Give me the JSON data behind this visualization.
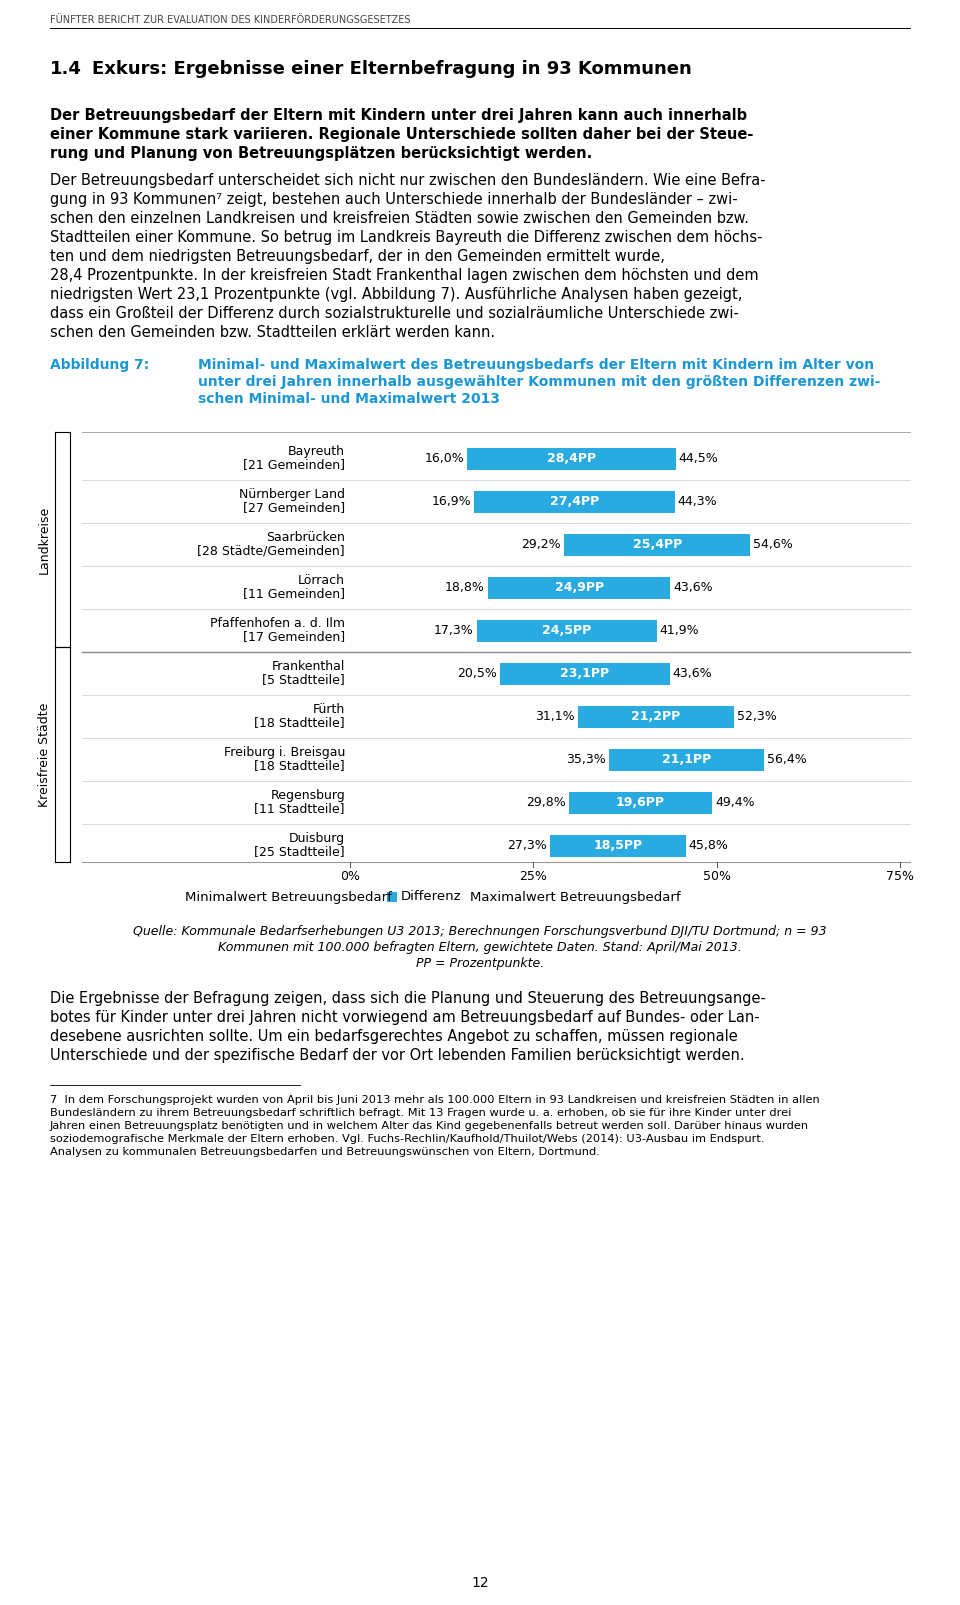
{
  "header": "FÜNFTER BERICHT ZUR EVALUATION DES KINDERFÖRDERUNGSGESETZES",
  "section_num": "1.4",
  "section_title": "Exkurs: Ergebnisse einer Elternbefragung in 93 Kommunen",
  "bold_lines": [
    "Der Betreuungsbedarf der Eltern mit Kindern unter drei Jahren kann auch innerhalb",
    "einer Kommune stark variieren. Regionale Unterschiede sollten daher bei der Steue-",
    "rung und Planung von Betreuungsplätzen berücksichtigt werden."
  ],
  "para1_lines": [
    "Der Betreuungsbedarf unterscheidet sich nicht nur zwischen den Bundesländern. Wie eine Befra-",
    "gung in 93 Kommunen⁷ zeigt, bestehen auch Unterschiede innerhalb der Bundesländer – zwi-",
    "schen den einzelnen Landkreisen und kreisfreien Städten sowie zwischen den Gemeinden bzw.",
    "Stadtteilen einer Kommune. So betrug im Landkreis Bayreuth die Differenz zwischen dem höchs-",
    "ten und dem niedrigsten Betreuungsbedarf, der in den Gemeinden ermittelt wurde,",
    "28,4 Prozentpunkte. In der kreisfreien Stadt Frankenthal lagen zwischen dem höchsten und dem",
    "niedrigsten Wert 23,1 Prozentpunkte (vgl. Abbildung 7). Ausführliche Analysen haben gezeigt,",
    "dass ein Großteil der Differenz durch sozialstrukturelle und sozialräumliche Unterschiede zwi-",
    "schen den Gemeinden bzw. Stadtteilen erklärt werden kann."
  ],
  "fig_label": "Abbildung 7:",
  "fig_title_lines": [
    "Minimal- und Maximalwert des Betreuungsbedarfs der Eltern mit Kindern im Alter von",
    "unter drei Jahren innerhalb ausgewählter Kommunen mit den größten Differenzen zwi-",
    "schen Minimal- und Maximalwert 2013"
  ],
  "categories": [
    "Bayreuth\n[21 Gemeinden]",
    "Nürnberger Land\n[27 Gemeinden]",
    "Saarbrücken\n[28 Städte/Gemeinden]",
    "Lörrach\n[11 Gemeinden]",
    "Pfaffenhofen a. d. Ilm\n[17 Gemeinden]",
    "Frankenthal\n[5 Stadtteile]",
    "Fürth\n[18 Stadtteile]",
    "Freiburg i. Breisgau\n[18 Stadtteile]",
    "Regensburg\n[11 Stadtteile]",
    "Duisburg\n[25 Stadtteile]"
  ],
  "group_labels": [
    "Landkreise",
    "Kreisfreie Städte"
  ],
  "min_vals": [
    16.0,
    16.9,
    29.2,
    18.8,
    17.3,
    20.5,
    31.1,
    35.3,
    29.8,
    27.3
  ],
  "diff_vals": [
    28.4,
    27.4,
    25.4,
    24.9,
    24.5,
    23.1,
    21.2,
    21.1,
    19.6,
    18.5
  ],
  "diff_labels": [
    "28,4PP",
    "27,4PP",
    "25,4PP",
    "24,9PP",
    "24,5PP",
    "23,1PP",
    "21,2PP",
    "21,1PP",
    "19,6PP",
    "18,5PP"
  ],
  "min_labels": [
    "16,0%",
    "16,9%",
    "29,2%",
    "18,8%",
    "17,3%",
    "20,5%",
    "31,1%",
    "35,3%",
    "29,8%",
    "27,3%"
  ],
  "max_labels": [
    "44,5%",
    "44,3%",
    "54,6%",
    "43,6%",
    "41,9%",
    "43,6%",
    "52,3%",
    "56,4%",
    "49,4%",
    "45,8%"
  ],
  "bar_color": "#29ABE2",
  "x_ticks": [
    0,
    25,
    50,
    75
  ],
  "x_tick_labels": [
    "0%",
    "25%",
    "50%",
    "75%"
  ],
  "legend_label_1": "Minimalwert Betreuungsbedarf",
  "legend_label_2": "Differenz",
  "legend_label_3": "Maximalwert Betreuungsbedarf",
  "source_lines": [
    "Quelle: Kommunale Bedarfserhebungen U3 2013; Berechnungen Forschungsverbund DJI/TU Dortmund; n = 93",
    "Kommunen mit 100.000 befragten Eltern, gewichtete Daten. Stand: April/Mai 2013.",
    "PP = Prozentpunkte."
  ],
  "para2_lines": [
    "Die Ergebnisse der Befragung zeigen, dass sich die Planung und Steuerung des Betreuungsange-",
    "botes für Kinder unter drei Jahren nicht vorwiegend am Betreuungsbedarf auf Bundes- oder Lan-",
    "desebene ausrichten sollte. Um ein bedarfsgerechtes Angebot zu schaffen, müssen regionale",
    "Unterschiede und der spezifische Bedarf der vor Ort lebenden Familien berücksichtigt werden."
  ],
  "footnote_lines": [
    "7  In dem Forschungsprojekt wurden von April bis Juni 2013 mehr als 100.000 Eltern in 93 Landkreisen und kreisfreien Städten in allen",
    "Bundesländern zu ihrem Betreuungsbedarf schriftlich befragt. Mit 13 Fragen wurde u. a. erhoben, ob sie für ihre Kinder unter drei",
    "Jahren einen Betreuungsplatz benötigten und in welchem Alter das Kind gegebenenfalls betreut werden soll. Darüber hinaus wurden",
    "soziodemografische Merkmale der Eltern erhoben. Vgl. Fuchs-Rechlin/Kaufhold/Thuilot/Webs (2014): U3-Ausbau im Endspurt.",
    "Analysen zu kommunalen Betreuungsbedarfen und Betreuungswünschen von Eltern, Dortmund."
  ],
  "page_number": "12",
  "bg_color": "#ffffff",
  "text_color": "#000000",
  "blue_color": "#29ABE2",
  "fig_label_color": "#1B97D4"
}
